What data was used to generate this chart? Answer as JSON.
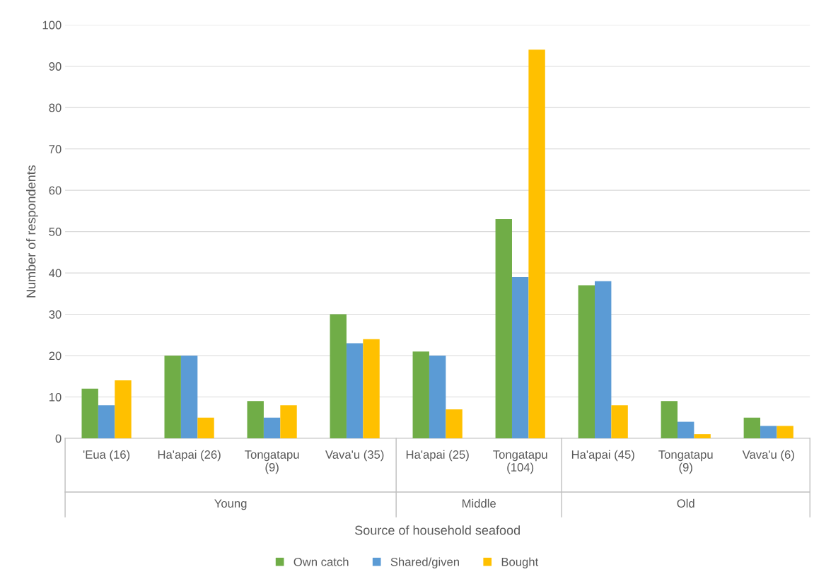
{
  "chart_data": {
    "type": "bar",
    "categories": [
      "'Eua (16)",
      "Ha'apai (26)",
      "Tongatapu\n(9)",
      "Vava'u (35)",
      "Ha'apai (25)",
      "Tongatapu\n(104)",
      "Ha'apai (45)",
      "Tongatapu\n(9)",
      "Vava'u (6)"
    ],
    "series": [
      {
        "name": "Own catch",
        "color": "#70ad47",
        "values": [
          12,
          20,
          9,
          30,
          21,
          53,
          37,
          9,
          5
        ]
      },
      {
        "name": "Shared/given",
        "color": "#5b9bd5",
        "values": [
          8,
          20,
          5,
          23,
          20,
          39,
          38,
          4,
          3
        ]
      },
      {
        "name": "Bought",
        "color": "#ffc000",
        "values": [
          14,
          5,
          8,
          24,
          7,
          94,
          8,
          1,
          3
        ]
      }
    ],
    "xlabel": "Source of household seafood",
    "ylabel": "Number of respondents",
    "annotations": [
      "Young",
      "Middle",
      "Old"
    ],
    "ylim": [
      0,
      100
    ],
    "yticks": [
      0,
      10,
      20,
      30,
      40,
      50,
      60,
      70,
      80,
      90,
      100
    ],
    "grid": "y",
    "legend": "bottom"
  }
}
